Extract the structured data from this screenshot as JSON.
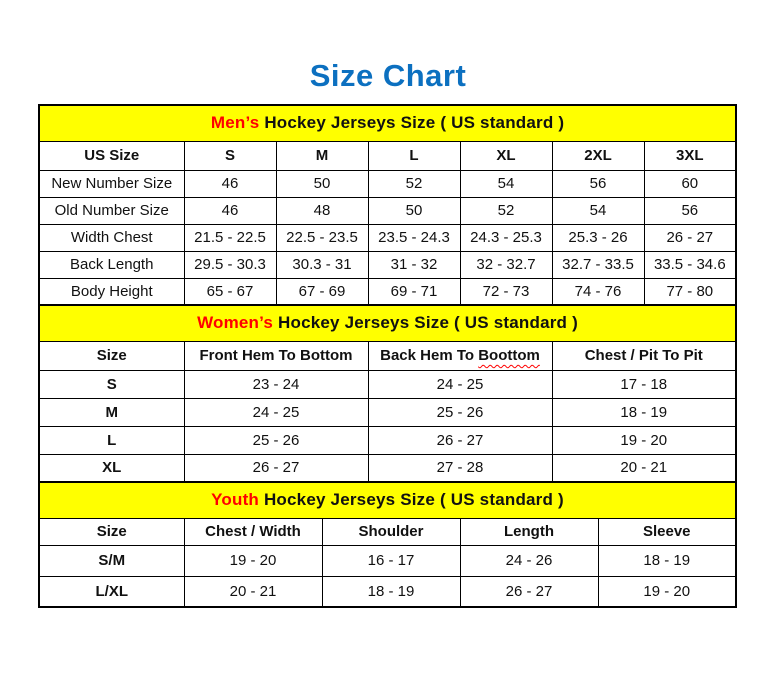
{
  "page": {
    "title": "Size Chart"
  },
  "colors": {
    "title_blue": "#0C70C0",
    "band_yellow": "#FFFF00",
    "accent_red": "#FF0000",
    "border_black": "#000000"
  },
  "chart_data": [
    {
      "type": "table",
      "id": "mens",
      "title_highlight": "Men’s",
      "title_rest": " Hockey Jerseys Size ( US standard )",
      "columns": [
        "US Size",
        "S",
        "M",
        "L",
        "XL",
        "2XL",
        "3XL"
      ],
      "rows": [
        {
          "label": "New Number Size",
          "values": [
            "46",
            "50",
            "52",
            "54",
            "56",
            "60"
          ]
        },
        {
          "label": "Old Number Size",
          "values": [
            "46",
            "48",
            "50",
            "52",
            "54",
            "56"
          ]
        },
        {
          "label": "Width Chest",
          "values": [
            "21.5 - 22.5",
            "22.5 - 23.5",
            "23.5 - 24.3",
            "24.3 - 25.3",
            "25.3 - 26",
            "26 - 27"
          ]
        },
        {
          "label": "Back Length",
          "values": [
            "29.5 - 30.3",
            "30.3 - 31",
            "31 - 32",
            "32 - 32.7",
            "32.7 - 33.5",
            "33.5 - 34.6"
          ]
        },
        {
          "label": "Body Height",
          "values": [
            "65 - 67",
            "67 - 69",
            "69 - 71",
            "72 - 73",
            "74 - 76",
            "77 - 80"
          ]
        }
      ]
    },
    {
      "type": "table",
      "id": "womens",
      "title_highlight": "Women’s",
      "title_rest": " Hockey Jerseys Size ( US standard )",
      "columns": [
        "Size",
        "Front Hem To Bottom",
        "Back Hem To Boottom",
        "Chest / Pit To Pit"
      ],
      "spellcheck": {
        "column": 2,
        "word": "Boottom"
      },
      "rows": [
        {
          "label": "S",
          "values": [
            "23 - 24",
            "24 - 25",
            "17 - 18"
          ]
        },
        {
          "label": "M",
          "values": [
            "24 - 25",
            "25 - 26",
            "18 - 19"
          ]
        },
        {
          "label": "L",
          "values": [
            "25 - 26",
            "26 - 27",
            "19 - 20"
          ]
        },
        {
          "label": "XL",
          "values": [
            "26 - 27",
            "27 - 28",
            "20 - 21"
          ]
        }
      ]
    },
    {
      "type": "table",
      "id": "youth",
      "title_highlight": "Youth",
      "title_rest": " Hockey Jerseys Size ( US standard )",
      "columns": [
        "Size",
        "Chest / Width",
        "Shoulder",
        "Length",
        "Sleeve"
      ],
      "rows": [
        {
          "label": "S/M",
          "values": [
            "19 - 20",
            "16 - 17",
            "24 - 26",
            "18 - 19"
          ]
        },
        {
          "label": "L/XL",
          "values": [
            "20 - 21",
            "18 - 19",
            "26 - 27",
            "19 - 20"
          ]
        }
      ]
    }
  ]
}
